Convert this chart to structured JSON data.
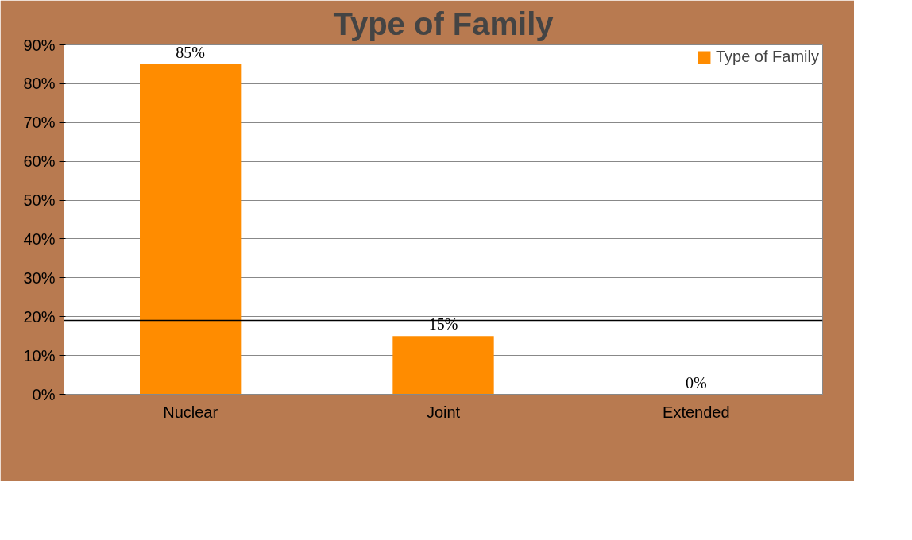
{
  "chart_data": {
    "type": "bar",
    "title": "Type of Family",
    "categories": [
      "Nuclear",
      "Joint",
      "Extended"
    ],
    "series": [
      {
        "name": "Type of Family",
        "color": "#ff8c00",
        "values": [
          85,
          15,
          0
        ]
      }
    ],
    "ylim": [
      0,
      90
    ],
    "yticks": [
      {
        "value": 0,
        "label": "0%"
      },
      {
        "value": 10,
        "label": "10%"
      },
      {
        "value": 20,
        "label": "20%"
      },
      {
        "value": 30,
        "label": "30%"
      },
      {
        "value": 40,
        "label": "40%"
      },
      {
        "value": 50,
        "label": "50%"
      },
      {
        "value": 60,
        "label": "60%"
      },
      {
        "value": 70,
        "label": "70%"
      },
      {
        "value": 80,
        "label": "80%"
      },
      {
        "value": 90,
        "label": "90%"
      }
    ],
    "value_labels": [
      "85%",
      "15%",
      "0%"
    ],
    "ref_lines": [
      {
        "axis": "y",
        "value": 19,
        "color": "#000000"
      }
    ],
    "grid": "y",
    "legend": "top right"
  }
}
